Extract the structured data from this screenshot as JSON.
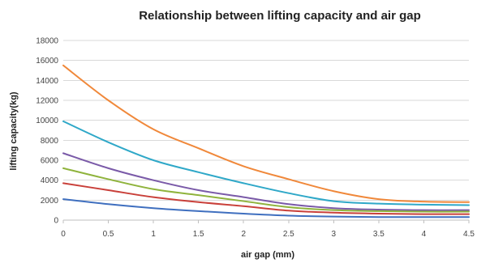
{
  "chart_data": {
    "type": "line",
    "title": "Relationship between lifting capacity and air gap",
    "xlabel": "air gap (mm)",
    "ylabel": "lifting capacity(kg)",
    "x": [
      0,
      0.5,
      1,
      1.5,
      2,
      2.5,
      3,
      3.5,
      4,
      4.5
    ],
    "x_tick_labels": [
      "0",
      "0.5",
      "1",
      "1.5",
      "2",
      "2.5",
      "3",
      "3.5",
      "4",
      "4.5"
    ],
    "y_tick_labels": [
      "0",
      "2000",
      "4000",
      "6000",
      "8000",
      "10000",
      "12000",
      "14000",
      "16000",
      "18000"
    ],
    "xlim": [
      0,
      4.5
    ],
    "ylim": [
      0,
      18000
    ],
    "grid": true,
    "legend": "none",
    "series": [
      {
        "color": "#f0883a",
        "values": [
          15500,
          12000,
          9100,
          7200,
          5400,
          4100,
          2900,
          2100,
          1850,
          1800
        ]
      },
      {
        "color": "#2fa8c8",
        "values": [
          9900,
          7800,
          6000,
          4800,
          3700,
          2700,
          1900,
          1650,
          1550,
          1500
        ]
      },
      {
        "color": "#7a5aa8",
        "values": [
          6700,
          5200,
          4000,
          3000,
          2300,
          1600,
          1200,
          1050,
          1000,
          1000
        ]
      },
      {
        "color": "#8fb33c",
        "values": [
          5200,
          4100,
          3100,
          2500,
          1900,
          1300,
          1000,
          900,
          850,
          850
        ]
      },
      {
        "color": "#c9403a",
        "values": [
          3700,
          3000,
          2300,
          1800,
          1400,
          950,
          750,
          650,
          600,
          600
        ]
      },
      {
        "color": "#3f6fbf",
        "values": [
          2100,
          1600,
          1200,
          900,
          650,
          450,
          350,
          300,
          300,
          300
        ]
      }
    ]
  }
}
